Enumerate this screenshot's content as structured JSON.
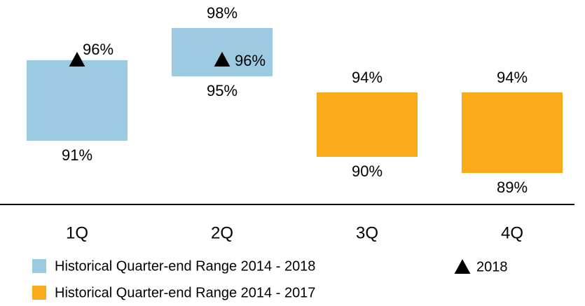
{
  "chart_data": {
    "type": "range_bar",
    "categories": [
      "1Q",
      "2Q",
      "3Q",
      "4Q"
    ],
    "ylim": [
      87,
      100
    ],
    "series": [
      {
        "name": "Historical Quarter-end Range 2014 - 2018",
        "color": "#9ecae1",
        "values": [
          [
            91,
            96
          ],
          [
            95,
            98
          ],
          null,
          null
        ],
        "value_labels": [
          [
            "91%",
            null
          ],
          [
            "95%",
            "98%"
          ],
          null,
          null
        ]
      },
      {
        "name": "Historical Quarter-end Range 2014 - 2017",
        "color": "#f9ab1b",
        "values": [
          null,
          null,
          [
            90,
            94
          ],
          [
            89,
            94
          ]
        ],
        "value_labels": [
          null,
          null,
          [
            "90%",
            "94%"
          ],
          [
            "89%",
            "94%"
          ]
        ]
      },
      {
        "name": "2018",
        "type": "marker",
        "color": "#000000",
        "values": [
          96,
          96,
          null,
          null
        ],
        "value_labels": [
          "96%",
          "96%",
          null,
          null
        ]
      }
    ]
  }
}
